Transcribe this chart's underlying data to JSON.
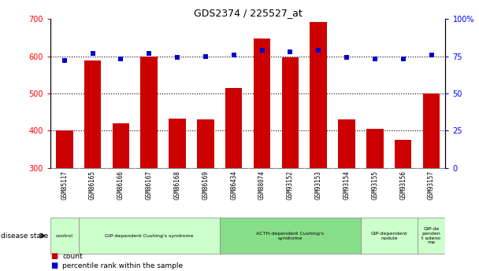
{
  "title": "GDS2374 / 225527_at",
  "samples": [
    "GSM85117",
    "GSM86165",
    "GSM86166",
    "GSM86167",
    "GSM86168",
    "GSM86169",
    "GSM86434",
    "GSM88074",
    "GSM93152",
    "GSM93153",
    "GSM93154",
    "GSM93155",
    "GSM93156",
    "GSM93157"
  ],
  "counts": [
    400,
    588,
    420,
    600,
    433,
    430,
    515,
    647,
    597,
    692,
    430,
    406,
    375,
    500
  ],
  "percentiles": [
    72,
    77,
    73,
    77,
    74,
    75,
    76,
    79,
    78,
    79,
    74,
    73,
    73,
    76
  ],
  "bar_color": "#cc0000",
  "dot_color": "#0000cc",
  "y_min": 300,
  "y_max": 700,
  "y_ticks_left": [
    300,
    400,
    500,
    600,
    700
  ],
  "y_ticks_right": [
    0,
    25,
    50,
    75,
    100
  ],
  "grid_values": [
    400,
    500,
    600
  ],
  "disease_groups": [
    {
      "label": "control",
      "start": 0,
      "end": 1,
      "color": "#ccffcc",
      "bold": false
    },
    {
      "label": "GIP-dependent Cushing's syndrome",
      "start": 1,
      "end": 6,
      "color": "#ccffcc",
      "bold": false
    },
    {
      "label": "ACTH-dependent Cushing's\nsyndrome",
      "start": 6,
      "end": 11,
      "color": "#88dd88",
      "bold": false
    },
    {
      "label": "GIP-dependent\nnodule",
      "start": 11,
      "end": 13,
      "color": "#ccffcc",
      "bold": false
    },
    {
      "label": "GIP-de\npenden\nt adeno\nma",
      "start": 13,
      "end": 14,
      "color": "#ccffcc",
      "bold": false
    }
  ],
  "background_color": "#ffffff",
  "plot_bg_color": "#ffffff",
  "xtick_bg_color": "#c8c8c8"
}
